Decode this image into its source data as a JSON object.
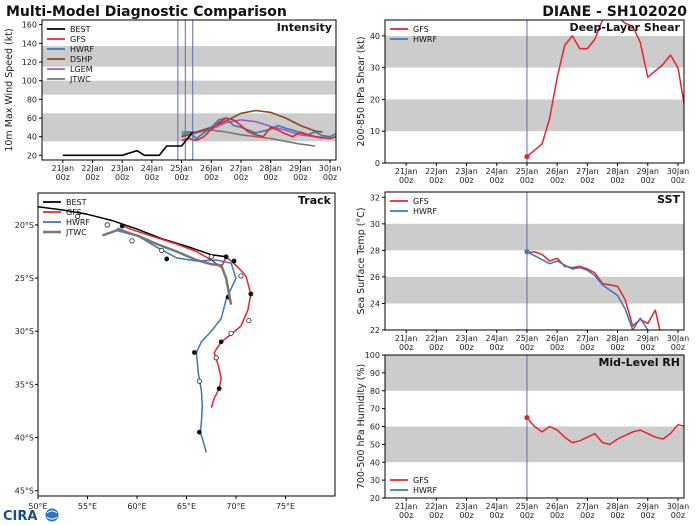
{
  "header": {
    "title": "Multi-Model Diagnostic Comparison",
    "storm": "DIANE - SH102020"
  },
  "logo": {
    "text": "CIRA"
  },
  "colors": {
    "BEST": "#000000",
    "GFS": "#e8242b",
    "HWRF": "#3a78b5",
    "DSHP": "#8b4a1f",
    "LGEM": "#a35bc4",
    "JTWC": "#777777",
    "band": "#cccccc",
    "vline": "#5a6fb0"
  },
  "time_ticks": [
    {
      "day": "21Jan",
      "hr": "00z"
    },
    {
      "day": "22Jan",
      "hr": "00z"
    },
    {
      "day": "23Jan",
      "hr": "00z"
    },
    {
      "day": "24Jan",
      "hr": "00z"
    },
    {
      "day": "25Jan",
      "hr": "00z"
    },
    {
      "day": "26Jan",
      "hr": "00z"
    },
    {
      "day": "27Jan",
      "hr": "00z"
    },
    {
      "day": "28Jan",
      "hr": "00z"
    },
    {
      "day": "29Jan",
      "hr": "00z"
    },
    {
      "day": "30Jan",
      "hr": "00z"
    }
  ],
  "chart_data": [
    {
      "id": "intensity",
      "type": "line",
      "title": "Intensity",
      "ylabel": "10m Max Wind Speed (kt)",
      "x_unit": "days from 21 Jan 00z",
      "xlim": [
        -0.7,
        9.2
      ],
      "ylim": [
        15,
        165
      ],
      "yticks": [
        20,
        40,
        60,
        80,
        100,
        120,
        140,
        160
      ],
      "bands": [
        [
          35,
          65
        ],
        [
          85,
          100
        ],
        [
          115,
          137
        ]
      ],
      "vlines": [
        3.875,
        4.125,
        4.375
      ],
      "legend": [
        "BEST",
        "GFS",
        "HWRF",
        "DSHP",
        "LGEM",
        "JTWC"
      ],
      "series": [
        {
          "name": "BEST",
          "x": [
            0,
            1,
            2,
            2.5,
            2.75,
            3.25,
            3.5,
            3.75,
            4.0,
            4.125,
            4.25,
            4.375
          ],
          "y": [
            20,
            20,
            20,
            25,
            20,
            20,
            30,
            30,
            30,
            35,
            40,
            45
          ]
        },
        {
          "name": "GFS",
          "x": [
            4.0,
            4.25,
            4.5,
            4.75,
            5.0,
            5.25,
            5.5,
            5.75,
            6.0,
            6.25,
            6.5,
            6.75,
            7.0,
            7.25,
            7.5,
            7.75,
            8.0,
            8.25,
            8.5,
            8.75,
            9.0,
            9.2
          ],
          "y": [
            36,
            38,
            36,
            40,
            48,
            55,
            60,
            58,
            52,
            45,
            42,
            40,
            50,
            47,
            43,
            40,
            45,
            42,
            40,
            39,
            38,
            40
          ]
        },
        {
          "name": "HWRF",
          "x": [
            4.0,
            4.25,
            4.5,
            4.75,
            5.0,
            5.25,
            5.5,
            5.75,
            6.0,
            6.25,
            6.5,
            6.75,
            7.0,
            7.25,
            7.5,
            7.75,
            8.0,
            8.25,
            8.5,
            8.75,
            9.0,
            9.2
          ],
          "y": [
            42,
            45,
            38,
            44,
            50,
            58,
            60,
            52,
            50,
            47,
            44,
            46,
            48,
            52,
            49,
            47,
            44,
            42,
            45,
            41,
            40,
            43
          ]
        },
        {
          "name": "DSHP",
          "x": [
            4.0,
            4.5,
            5.0,
            5.5,
            6.0,
            6.5,
            7.0,
            7.5,
            8.0,
            8.5,
            8.75
          ],
          "y": [
            40,
            45,
            50,
            57,
            65,
            68,
            66,
            60,
            52,
            46,
            45
          ]
        },
        {
          "name": "LGEM",
          "x": [
            4.0,
            4.5,
            5.0,
            5.5,
            6.0,
            6.5,
            7.0,
            7.5,
            8.0,
            8.5,
            8.75
          ],
          "y": [
            40,
            44,
            48,
            55,
            58,
            56,
            51,
            47,
            42,
            40,
            38
          ]
        },
        {
          "name": "JTWC",
          "x": [
            4.0,
            4.5,
            5.0,
            5.5,
            6.0,
            6.5,
            7.0,
            7.5,
            8.0,
            8.5
          ],
          "y": [
            45,
            45,
            47,
            45,
            42,
            40,
            38,
            35,
            32,
            30
          ]
        }
      ]
    },
    {
      "id": "shear",
      "type": "line",
      "title": "Deep-Layer Shear",
      "ylabel": "200-850 hPa Shear (kt)",
      "x_unit": "days from 21 Jan 00z",
      "xlim": [
        -0.7,
        9.2
      ],
      "ylim": [
        0,
        45
      ],
      "yticks": [
        0,
        10,
        20,
        30,
        40
      ],
      "bands": [
        [
          10,
          20
        ],
        [
          30,
          40
        ]
      ],
      "vlines": [
        4.0
      ],
      "legend": [
        "GFS",
        "HWRF"
      ],
      "series": [
        {
          "name": "GFS",
          "x": [
            4.0,
            4.5,
            4.75,
            5.0,
            5.25,
            5.5,
            5.75,
            6.0,
            6.25,
            6.5,
            6.75,
            7.0,
            7.25,
            7.5,
            7.75,
            8.0,
            8.25,
            8.5,
            8.75,
            9.0,
            9.25
          ],
          "y": [
            2,
            6,
            14,
            27,
            37,
            40,
            36,
            36,
            39,
            45,
            50,
            46,
            44,
            43,
            38,
            27,
            29,
            31,
            34,
            30,
            16
          ]
        }
      ]
    },
    {
      "id": "track",
      "type": "line",
      "title": "Track",
      "x_unit": "longitude degrees E",
      "y_unit": "latitude degrees (negative = south)",
      "xlim": [
        50,
        80
      ],
      "ylim": [
        -45.5,
        -17
      ],
      "xticks": [
        {
          "v": 50,
          "label": "50°E"
        },
        {
          "v": 55,
          "label": "55°E"
        },
        {
          "v": 60,
          "label": "60°E"
        },
        {
          "v": 65,
          "label": "65°E"
        },
        {
          "v": 70,
          "label": "70°E"
        },
        {
          "v": 75,
          "label": "75°E"
        }
      ],
      "yticks": [
        {
          "v": -20,
          "label": "20°S"
        },
        {
          "v": -25,
          "label": "25°S"
        },
        {
          "v": -30,
          "label": "30°S"
        },
        {
          "v": -35,
          "label": "35°S"
        },
        {
          "v": -40,
          "label": "40°S"
        },
        {
          "v": -45,
          "label": "45°S"
        }
      ],
      "legend": [
        "BEST",
        "GFS",
        "HWRF",
        "JTWC"
      ],
      "series": [
        {
          "name": "BEST",
          "x": [
            47.5,
            50.0,
            52.5,
            55.0,
            57.5,
            60.0,
            62.5,
            65.0,
            67.5,
            69.0
          ],
          "y": [
            -18.0,
            -18.3,
            -18.6,
            -19.0,
            -19.6,
            -20.4,
            -21.3,
            -22.0,
            -22.8,
            -23.0
          ]
        },
        {
          "name": "GFS",
          "x": [
            58.5,
            60.0,
            62.0,
            64.0,
            66.0,
            67.5,
            68.5,
            69.0,
            70.0,
            71.0,
            71.5,
            71.2,
            70.5,
            69.5,
            68.5,
            67.8,
            68.2,
            68.5,
            68.3,
            67.8,
            67.5
          ],
          "y": [
            -20.1,
            -20.6,
            -21.2,
            -21.8,
            -22.5,
            -23.3,
            -24.0,
            -23.0,
            -23.8,
            -24.8,
            -26.5,
            -28.0,
            -29.5,
            -30.3,
            -31.0,
            -32.0,
            -33.2,
            -34.4,
            -35.4,
            -36.3,
            -37.2
          ],
          "markers": [
            [
              58.5,
              -20.1
            ],
            [
              69.0,
              -23.0
            ],
            [
              71.5,
              -26.5
            ],
            [
              68.5,
              -31.0
            ],
            [
              68.3,
              -35.4
            ]
          ]
        },
        {
          "name": "HWRF",
          "x": [
            58.0,
            60.0,
            62.0,
            64.0,
            66.0,
            68.0,
            69.5,
            70.0,
            69.5,
            69.0,
            68.5,
            67.5,
            66.5,
            66.0,
            66.2,
            66.5,
            66.6,
            66.5,
            66.4,
            66.7,
            67.0
          ],
          "y": [
            -20.3,
            -21.0,
            -22.1,
            -23.1,
            -23.4,
            -23.3,
            -23.6,
            -25.0,
            -26.0,
            -27.0,
            -28.8,
            -30.0,
            -31.0,
            -32.0,
            -34.0,
            -35.6,
            -37.0,
            -38.5,
            -39.5,
            -40.4,
            -41.4
          ],
          "markers": [
            [
              63.0,
              -23.2
            ],
            [
              69.8,
              -23.4
            ],
            [
              69.2,
              -26.8
            ],
            [
              65.8,
              -32.0
            ],
            [
              66.3,
              -39.5
            ]
          ]
        },
        {
          "name": "JTWC",
          "x": [
            56.5,
            58.0,
            60.0,
            62.0,
            64.0,
            66.0,
            67.5,
            68.5,
            69.0,
            69.3,
            69.5
          ],
          "y": [
            -21.0,
            -20.5,
            -21.0,
            -21.8,
            -22.5,
            -23.3,
            -23.7,
            -23.8,
            -25.0,
            -26.5,
            -27.5
          ]
        },
        {
          "name": "open-circles",
          "x": [
            54.0,
            57.0,
            59.5,
            62.5,
            67.5,
            70.5,
            71.3,
            69.5,
            68.0,
            66.3
          ],
          "y": [
            -19.2,
            -20.0,
            -21.5,
            -22.4,
            -23.0,
            -24.8,
            -29.0,
            -30.2,
            -32.5,
            -34.7
          ]
        }
      ]
    },
    {
      "id": "sst",
      "type": "line",
      "title": "SST",
      "ylabel": "Sea Surface Temp (°C)",
      "x_unit": "days from 21 Jan 00z",
      "xlim": [
        -0.7,
        9.2
      ],
      "ylim": [
        22,
        32.4
      ],
      "yticks": [
        22,
        24,
        26,
        28,
        30,
        32
      ],
      "bands": [
        [
          24,
          26
        ],
        [
          28,
          30
        ]
      ],
      "vlines": [
        4.0
      ],
      "legend": [
        "GFS",
        "HWRF"
      ],
      "series": [
        {
          "name": "GFS",
          "x": [
            4.0,
            4.25,
            4.5,
            4.75,
            5.0,
            5.25,
            5.5,
            5.75,
            6.0,
            6.25,
            6.5,
            6.75,
            7.0,
            7.25,
            7.5,
            7.75,
            8.0,
            8.25,
            8.4
          ],
          "y": [
            27.8,
            27.9,
            27.7,
            27.2,
            27.4,
            26.8,
            26.7,
            26.8,
            26.6,
            26.3,
            25.5,
            25.4,
            25.3,
            24.3,
            22.3,
            22.8,
            22.5,
            23.5,
            22.0
          ]
        },
        {
          "name": "HWRF",
          "x": [
            4.0,
            4.25,
            4.5,
            4.75,
            5.0,
            5.25,
            5.5,
            5.75,
            6.0,
            6.25,
            6.5,
            6.75,
            7.0,
            7.25,
            7.5,
            7.75,
            8.0
          ],
          "y": [
            27.9,
            27.6,
            27.3,
            27.0,
            27.2,
            26.9,
            26.6,
            26.7,
            26.5,
            26.1,
            25.4,
            25.0,
            24.6,
            23.6,
            22.0,
            22.9,
            22.0
          ]
        }
      ]
    },
    {
      "id": "rh",
      "type": "line",
      "title": "Mid-Level RH",
      "ylabel": "700-500 hPa Humidity (%)",
      "x_unit": "days from 21 Jan 00z",
      "xlim": [
        -0.7,
        9.2
      ],
      "ylim": [
        20,
        100
      ],
      "yticks": [
        20,
        30,
        40,
        50,
        60,
        70,
        80,
        90,
        100
      ],
      "bands": [
        [
          40,
          60
        ],
        [
          80,
          100
        ]
      ],
      "vlines": [
        4.0
      ],
      "legend": [
        "GFS",
        "HWRF"
      ],
      "series": [
        {
          "name": "GFS",
          "x": [
            4.0,
            4.25,
            4.5,
            4.75,
            5.0,
            5.25,
            5.5,
            5.75,
            6.0,
            6.25,
            6.5,
            6.75,
            7.0,
            7.25,
            7.5,
            7.75,
            8.0,
            8.25,
            8.5,
            8.75,
            9.0,
            9.25
          ],
          "y": [
            65,
            60,
            57,
            60,
            58,
            54,
            51,
            52,
            54,
            56,
            51,
            50,
            53,
            55,
            57,
            58,
            56,
            54,
            53,
            56,
            61,
            60
          ]
        }
      ]
    }
  ]
}
